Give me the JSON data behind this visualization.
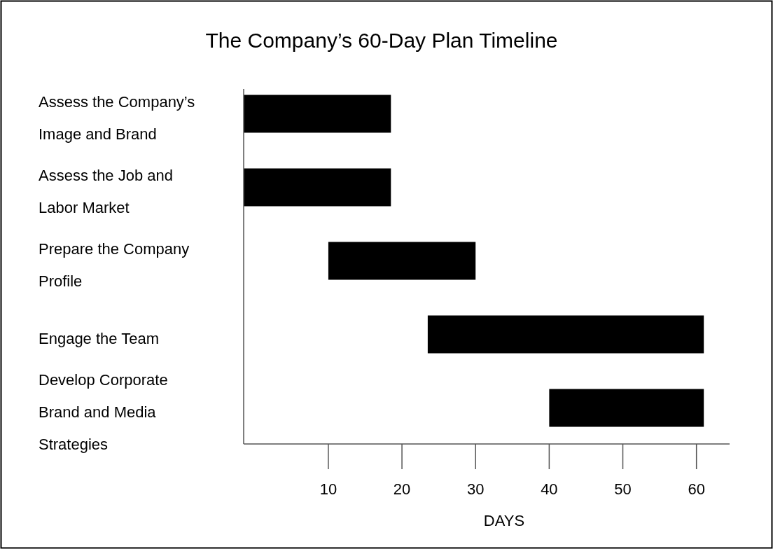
{
  "chart_data": {
    "type": "bar",
    "orientation": "horizontal",
    "title": "The Company’s 60-Day Plan Timeline",
    "xlabel": "DAYS",
    "categories": [
      "Assess the Company’s Image and Brand",
      "Assess the Job and Labor Market",
      "Prepare the Company Profile",
      "Engage the Team",
      "Develop Corporate Brand and Media Strategies"
    ],
    "base": [
      -1.5,
      -1.5,
      10,
      23.5,
      40
    ],
    "values": [
      20,
      20,
      20,
      37.5,
      21
    ],
    "color": "#000000",
    "xlim": [
      -1.5,
      64.5
    ],
    "xticks": [
      10,
      20,
      30,
      40,
      50,
      60
    ],
    "grid": false
  }
}
